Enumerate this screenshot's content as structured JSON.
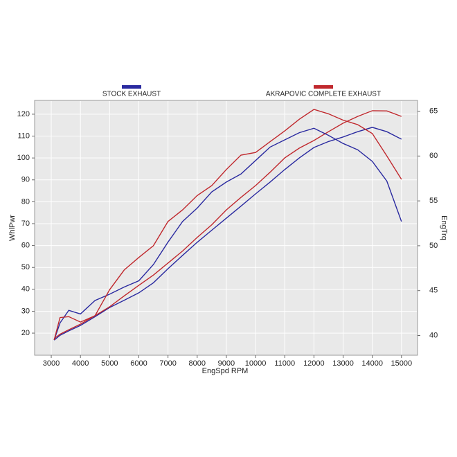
{
  "chart_data": {
    "type": "line",
    "x_label": "EngSpd  RPM",
    "y_label": "WhlPwr",
    "y2_label": "EngTrq",
    "x": [
      3100,
      3300,
      3600,
      4000,
      4500,
      5000,
      5500,
      6000,
      6500,
      7000,
      7500,
      8000,
      8500,
      9000,
      9500,
      10000,
      10500,
      11000,
      11500,
      12000,
      12500,
      13000,
      13500,
      14000,
      14500,
      15000
    ],
    "series": [
      {
        "name": "STOCK EXHAUST",
        "color": "#2a2aa0",
        "values": [
          16.8,
          19,
          21,
          23.5,
          27.5,
          31.7,
          35,
          38.4,
          43,
          49.4,
          55.5,
          61.5,
          67,
          72.5,
          78,
          83.6,
          89,
          94.7,
          100,
          104.8,
          107.5,
          109.6,
          112,
          114,
          112,
          108.6
        ]
      },
      {
        "name": "AKRAPOVIC COMPLETE EXHAUST",
        "color": "#c0282d",
        "values": [
          17.5,
          19.5,
          21.5,
          24.1,
          28,
          32,
          37,
          41.8,
          46.5,
          52,
          57.5,
          63.7,
          69.5,
          76.3,
          82,
          87.4,
          93.5,
          100,
          104.5,
          108,
          112,
          115.9,
          119,
          121.6,
          121.5,
          119
        ]
      },
      {
        "color": "#2a2aa0",
        "axis": "y2",
        "values": [
          39.5,
          41.4,
          42.8,
          42.4,
          43.9,
          44.6,
          45.4,
          46.1,
          47.9,
          50.4,
          52.7,
          54.2,
          56,
          57.1,
          58,
          59.5,
          61,
          61.8,
          62.6,
          63.1,
          62.3,
          61.4,
          60.7,
          59.4,
          57.2,
          52.7
        ]
      },
      {
        "color": "#c0282d",
        "axis": "y2",
        "values": [
          39.5,
          42,
          42.1,
          41.5,
          42.2,
          45.1,
          47.3,
          48.7,
          50,
          52.7,
          54,
          55.6,
          56.7,
          58.5,
          60.1,
          60.4,
          61.6,
          62.8,
          64.1,
          65.2,
          64.7,
          64,
          63.5,
          62.5,
          60,
          57.4
        ]
      }
    ],
    "xlim": [
      2430,
      15550
    ],
    "xticks": [
      3000,
      4000,
      5000,
      6000,
      7000,
      8000,
      9000,
      10000,
      11000,
      12000,
      13000,
      14000,
      15000
    ],
    "ylim": [
      9.9,
      126.3
    ],
    "yticks": [
      20,
      30,
      40,
      50,
      60,
      70,
      80,
      90,
      100,
      110,
      120
    ],
    "y2lim": [
      37.8,
      66.2
    ],
    "y2ticks": [
      40,
      45,
      50,
      55,
      60,
      65
    ],
    "grid": true
  }
}
